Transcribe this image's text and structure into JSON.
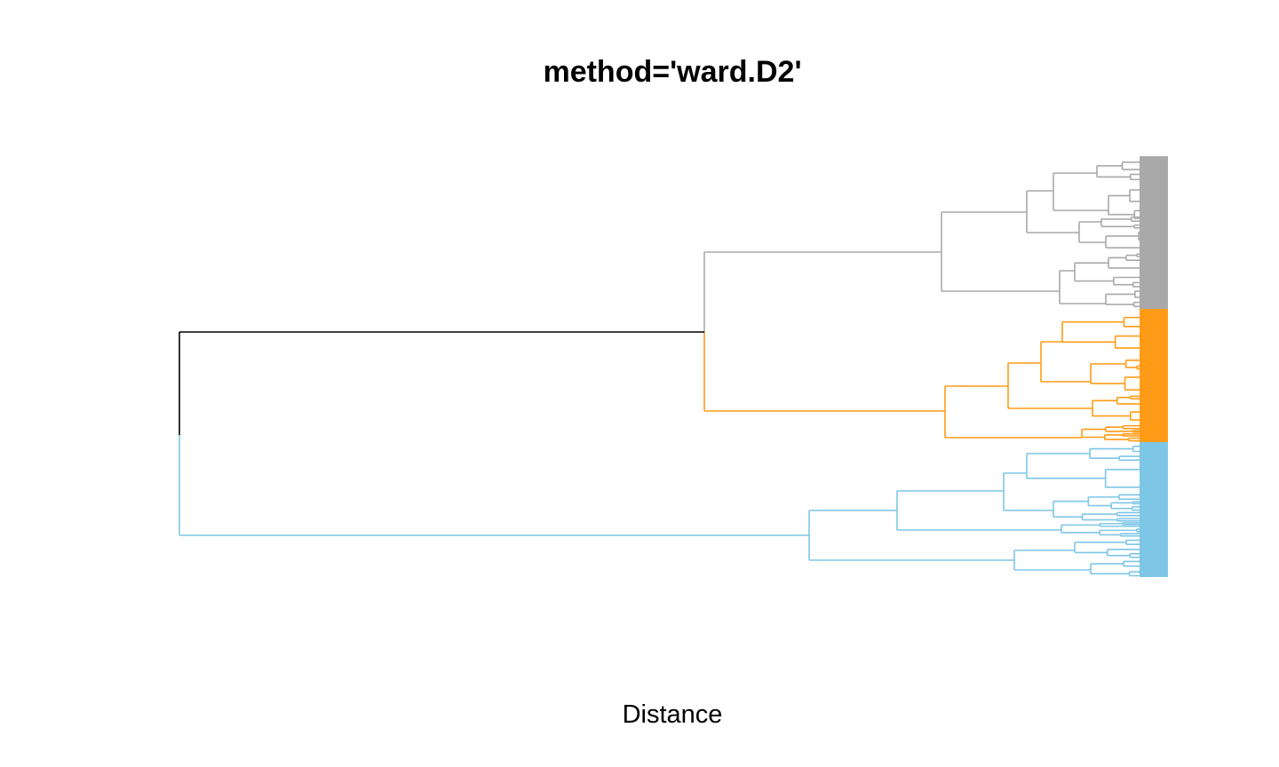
{
  "chart_data": {
    "type": "dendrogram",
    "title": "method='ward.D2'",
    "xlabel": "Distance",
    "orientation": "horizontal",
    "axes_visible": false,
    "grid": false,
    "legend": "none",
    "xlim": [
      0,
      1
    ],
    "clusters": [
      {
        "color": "#A9A9A9",
        "leaves_span": [
          0,
          0.366
        ]
      },
      {
        "color": "#FF9B17",
        "leaves_span": [
          0.366,
          0.685
        ]
      },
      {
        "color": "#7EC6E6",
        "leaves_span": [
          0.685,
          1.0
        ]
      }
    ],
    "root_color": "#000000"
  }
}
